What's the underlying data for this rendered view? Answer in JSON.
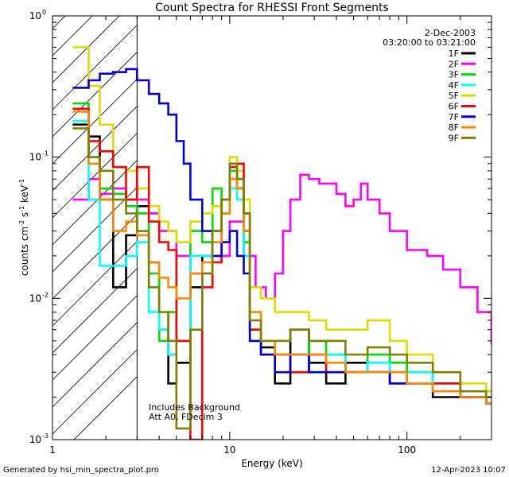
{
  "chart_data": {
    "type": "line",
    "title": "Count Spectra for RHESSI Front Segments",
    "xlabel": "Energy (keV)",
    "ylabel": "counts cm-2 s-1 keV-1",
    "x_scale": "log",
    "y_scale": "log",
    "xlim": [
      1,
      300
    ],
    "ylim": [
      0.001,
      1
    ],
    "x_ticks": [
      {
        "value": 1,
        "label": "1"
      },
      {
        "value": 10,
        "label": "10"
      },
      {
        "value": 100,
        "label": "100"
      }
    ],
    "y_ticks": [
      {
        "value": 0.001,
        "label": "10",
        "exp": "-3"
      },
      {
        "value": 0.01,
        "label": "10",
        "exp": "-2"
      },
      {
        "value": 0.1,
        "label": "10",
        "exp": "-1"
      },
      {
        "value": 1,
        "label": "10",
        "exp": "0"
      }
    ],
    "hatched_region_x": [
      1,
      3
    ],
    "legend_position": "top-right",
    "date": "2-Dec-2003",
    "time_range": "03:20:00 to 03:21:00",
    "annotation_line1": "Includes Background",
    "annotation_line2": "Att A0, FDecim 3",
    "footer_left": "Generated by hsi_min_spectra_plot.pro",
    "footer_right": "12-Apr-2023 10:07",
    "series": [
      {
        "name": "1F",
        "color": "#000000",
        "points": [
          [
            1.3,
            0.17
          ],
          [
            1.6,
            0.14
          ],
          [
            1.85,
            0.05
          ],
          [
            2.2,
            0.012
          ],
          [
            2.6,
            0.028
          ],
          [
            3.0,
            0.045
          ],
          [
            3.5,
            0.018
          ],
          [
            4.0,
            0.006
          ],
          [
            4.5,
            0.0025
          ],
          [
            5.0,
            0.0035
          ],
          [
            6.0,
            0.012
          ],
          [
            7.0,
            0.02
          ],
          [
            8.0,
            0.03
          ],
          [
            9.0,
            0.04
          ],
          [
            10.0,
            0.07
          ],
          [
            11.0,
            0.06
          ],
          [
            12.0,
            0.03
          ],
          [
            13.0,
            0.006
          ],
          [
            15.0,
            0.0045
          ],
          [
            18.0,
            0.0025
          ],
          [
            22.0,
            0.006
          ],
          [
            28.0,
            0.0035
          ],
          [
            35.0,
            0.0025
          ],
          [
            45.0,
            0.0035
          ],
          [
            60.0,
            0.003
          ],
          [
            80.0,
            0.0025
          ],
          [
            100.0,
            0.003
          ],
          [
            140.0,
            0.002
          ],
          [
            200.0,
            0.002
          ],
          [
            280.0,
            0.0018
          ]
        ]
      },
      {
        "name": "2F",
        "color": "#ff00ff",
        "points": [
          [
            1.3,
            0.05
          ],
          [
            1.6,
            0.07
          ],
          [
            1.85,
            0.055
          ],
          [
            2.2,
            0.06
          ],
          [
            2.6,
            0.05
          ],
          [
            3.0,
            0.05
          ],
          [
            3.5,
            0.04
          ],
          [
            4.0,
            0.03
          ],
          [
            5.0,
            0.02
          ],
          [
            6.0,
            0.015
          ],
          [
            8.0,
            0.02
          ],
          [
            10.0,
            0.035
          ],
          [
            12.0,
            0.02
          ],
          [
            14.0,
            0.012
          ],
          [
            16.0,
            0.01
          ],
          [
            18.0,
            0.015
          ],
          [
            20.0,
            0.03
          ],
          [
            22.0,
            0.05
          ],
          [
            25.0,
            0.075
          ],
          [
            28.0,
            0.07
          ],
          [
            32.0,
            0.065
          ],
          [
            36.0,
            0.065
          ],
          [
            40.0,
            0.055
          ],
          [
            45.0,
            0.045
          ],
          [
            50.0,
            0.05
          ],
          [
            55.0,
            0.065
          ],
          [
            60.0,
            0.05
          ],
          [
            70.0,
            0.04
          ],
          [
            80.0,
            0.03
          ],
          [
            100.0,
            0.022
          ],
          [
            130.0,
            0.02
          ],
          [
            160.0,
            0.016
          ],
          [
            200.0,
            0.012
          ],
          [
            250.0,
            0.008
          ],
          [
            300.0,
            0.0048
          ]
        ]
      },
      {
        "name": "3F",
        "color": "#00dd00",
        "points": [
          [
            1.3,
            0.24
          ],
          [
            1.6,
            0.1
          ],
          [
            1.85,
            0.06
          ],
          [
            2.2,
            0.055
          ],
          [
            2.6,
            0.045
          ],
          [
            3.0,
            0.04
          ],
          [
            3.5,
            0.015
          ],
          [
            4.0,
            0.005
          ],
          [
            4.5,
            0.008
          ],
          [
            5.0,
            0.005
          ],
          [
            6.0,
            0.03
          ],
          [
            7.0,
            0.025
          ],
          [
            8.0,
            0.06
          ],
          [
            9.0,
            0.05
          ],
          [
            10.0,
            0.08
          ],
          [
            11.0,
            0.06
          ],
          [
            12.0,
            0.025
          ],
          [
            13.0,
            0.005
          ],
          [
            15.0,
            0.004
          ],
          [
            18.0,
            0.004
          ],
          [
            22.0,
            0.003
          ],
          [
            28.0,
            0.005
          ],
          [
            35.0,
            0.004
          ],
          [
            45.0,
            0.003
          ],
          [
            60.0,
            0.004
          ],
          [
            80.0,
            0.0035
          ],
          [
            100.0,
            0.003
          ],
          [
            140.0,
            0.0025
          ],
          [
            200.0,
            0.002
          ],
          [
            280.0,
            0.002
          ]
        ]
      },
      {
        "name": "4F",
        "color": "#00ffff",
        "points": [
          [
            1.3,
            0.18
          ],
          [
            1.6,
            0.05
          ],
          [
            1.85,
            0.017
          ],
          [
            2.2,
            0.017
          ],
          [
            2.6,
            0.02
          ],
          [
            3.0,
            0.025
          ],
          [
            3.5,
            0.008
          ],
          [
            4.0,
            0.006
          ],
          [
            4.5,
            0.004
          ],
          [
            5.0,
            0.005
          ],
          [
            6.0,
            0.02
          ],
          [
            7.0,
            0.02
          ],
          [
            8.0,
            0.03
          ],
          [
            9.0,
            0.05
          ],
          [
            10.0,
            0.06
          ],
          [
            11.0,
            0.05
          ],
          [
            12.0,
            0.02
          ],
          [
            13.0,
            0.006
          ],
          [
            15.0,
            0.004
          ],
          [
            18.0,
            0.004
          ],
          [
            22.0,
            0.004
          ],
          [
            28.0,
            0.003
          ],
          [
            35.0,
            0.004
          ],
          [
            45.0,
            0.003
          ],
          [
            60.0,
            0.0035
          ],
          [
            80.0,
            0.003
          ],
          [
            100.0,
            0.003
          ],
          [
            140.0,
            0.0025
          ],
          [
            200.0,
            0.002
          ],
          [
            280.0,
            0.0018
          ]
        ]
      },
      {
        "name": "5F",
        "color": "#dddd00",
        "points": [
          [
            1.3,
            0.6
          ],
          [
            1.6,
            0.32
          ],
          [
            1.85,
            0.17
          ],
          [
            2.2,
            0.085
          ],
          [
            2.6,
            0.08
          ],
          [
            3.0,
            0.06
          ],
          [
            3.5,
            0.045
          ],
          [
            4.0,
            0.035
          ],
          [
            4.5,
            0.03
          ],
          [
            5.0,
            0.025
          ],
          [
            6.0,
            0.035
          ],
          [
            7.0,
            0.04
          ],
          [
            8.0,
            0.045
          ],
          [
            9.0,
            0.04
          ],
          [
            10.0,
            0.1
          ],
          [
            11.0,
            0.08
          ],
          [
            12.0,
            0.05
          ],
          [
            13.0,
            0.012
          ],
          [
            15.0,
            0.01
          ],
          [
            18.0,
            0.008
          ],
          [
            22.0,
            0.008
          ],
          [
            28.0,
            0.007
          ],
          [
            35.0,
            0.006
          ],
          [
            45.0,
            0.006
          ],
          [
            60.0,
            0.007
          ],
          [
            80.0,
            0.005
          ],
          [
            100.0,
            0.004
          ],
          [
            140.0,
            0.003
          ],
          [
            200.0,
            0.0025
          ],
          [
            280.0,
            0.0022
          ]
        ]
      },
      {
        "name": "6F",
        "color": "#ff0000",
        "points": [
          [
            1.3,
            0.22
          ],
          [
            1.6,
            0.13
          ],
          [
            1.85,
            0.11
          ],
          [
            2.2,
            0.085
          ],
          [
            2.6,
            0.05
          ],
          [
            3.0,
            0.085
          ],
          [
            3.5,
            0.035
          ],
          [
            4.0,
            0.025
          ],
          [
            4.5,
            0.022
          ],
          [
            5.0,
            0.005
          ],
          [
            6.0,
            0.001
          ],
          [
            7.0,
            0.012
          ],
          [
            8.0,
            0.018
          ],
          [
            9.0,
            0.05
          ],
          [
            10.0,
            0.085
          ],
          [
            11.0,
            0.09
          ],
          [
            12.0,
            0.04
          ],
          [
            13.0,
            0.006
          ],
          [
            15.0,
            0.004
          ],
          [
            18.0,
            0.004
          ],
          [
            22.0,
            0.003
          ],
          [
            28.0,
            0.004
          ],
          [
            35.0,
            0.003
          ],
          [
            45.0,
            0.003
          ],
          [
            60.0,
            0.003
          ],
          [
            80.0,
            0.003
          ],
          [
            100.0,
            0.0025
          ],
          [
            140.0,
            0.0025
          ],
          [
            200.0,
            0.002
          ],
          [
            280.0,
            0.0018
          ]
        ]
      },
      {
        "name": "7F",
        "color": "#0000dd",
        "points": [
          [
            1.3,
            0.31
          ],
          [
            1.6,
            0.35
          ],
          [
            1.85,
            0.39
          ],
          [
            2.2,
            0.4
          ],
          [
            2.6,
            0.42
          ],
          [
            3.0,
            0.35
          ],
          [
            3.5,
            0.28
          ],
          [
            4.0,
            0.24
          ],
          [
            4.5,
            0.2
          ],
          [
            5.0,
            0.13
          ],
          [
            5.5,
            0.09
          ],
          [
            6.0,
            0.05
          ],
          [
            7.0,
            0.03
          ],
          [
            8.0,
            0.02
          ],
          [
            9.0,
            0.025
          ],
          [
            10.0,
            0.03
          ],
          [
            11.0,
            0.02
          ],
          [
            12.0,
            0.015
          ],
          [
            13.0,
            0.005
          ],
          [
            15.0,
            0.004
          ],
          [
            18.0,
            0.003
          ],
          [
            22.0,
            0.004
          ],
          [
            28.0,
            0.003
          ],
          [
            35.0,
            0.003
          ],
          [
            45.0,
            0.003
          ],
          [
            60.0,
            0.003
          ],
          [
            80.0,
            0.0025
          ],
          [
            100.0,
            0.0025
          ],
          [
            140.0,
            0.0022
          ],
          [
            200.0,
            0.002
          ],
          [
            280.0,
            0.0018
          ]
        ]
      },
      {
        "name": "8F",
        "color": "#ff8800",
        "points": [
          [
            1.3,
            0.21
          ],
          [
            1.6,
            0.09
          ],
          [
            1.85,
            0.05
          ],
          [
            2.2,
            0.03
          ],
          [
            2.6,
            0.035
          ],
          [
            3.0,
            0.028
          ],
          [
            3.5,
            0.018
          ],
          [
            4.0,
            0.014
          ],
          [
            4.5,
            0.012
          ],
          [
            5.0,
            0.01
          ],
          [
            6.0,
            0.015
          ],
          [
            7.0,
            0.018
          ],
          [
            8.0,
            0.025
          ],
          [
            9.0,
            0.04
          ],
          [
            10.0,
            0.07
          ],
          [
            11.0,
            0.06
          ],
          [
            12.0,
            0.03
          ],
          [
            13.0,
            0.008
          ],
          [
            15.0,
            0.005
          ],
          [
            18.0,
            0.004
          ],
          [
            22.0,
            0.004
          ],
          [
            28.0,
            0.004
          ],
          [
            35.0,
            0.0035
          ],
          [
            45.0,
            0.003
          ],
          [
            60.0,
            0.003
          ],
          [
            80.0,
            0.003
          ],
          [
            100.0,
            0.0025
          ],
          [
            140.0,
            0.0022
          ],
          [
            200.0,
            0.002
          ],
          [
            280.0,
            0.0018
          ]
        ]
      },
      {
        "name": "9F",
        "color": "#808000",
        "points": [
          [
            1.3,
            0.16
          ],
          [
            1.6,
            0.1
          ],
          [
            1.85,
            0.08
          ],
          [
            2.2,
            0.05
          ],
          [
            2.6,
            0.04
          ],
          [
            3.0,
            0.03
          ],
          [
            3.5,
            0.012
          ],
          [
            4.0,
            0.008
          ],
          [
            4.5,
            0.005
          ],
          [
            5.0,
            0.0012
          ],
          [
            6.0,
            0.006
          ],
          [
            7.0,
            0.015
          ],
          [
            8.0,
            0.03
          ],
          [
            9.0,
            0.05
          ],
          [
            10.0,
            0.09
          ],
          [
            11.0,
            0.07
          ],
          [
            12.0,
            0.04
          ],
          [
            13.0,
            0.007
          ],
          [
            15.0,
            0.005
          ],
          [
            18.0,
            0.005
          ],
          [
            22.0,
            0.006
          ],
          [
            28.0,
            0.005
          ],
          [
            35.0,
            0.005
          ],
          [
            45.0,
            0.004
          ],
          [
            60.0,
            0.0045
          ],
          [
            80.0,
            0.004
          ],
          [
            100.0,
            0.0035
          ],
          [
            140.0,
            0.003
          ],
          [
            200.0,
            0.0022
          ],
          [
            280.0,
            0.002
          ]
        ]
      }
    ]
  }
}
